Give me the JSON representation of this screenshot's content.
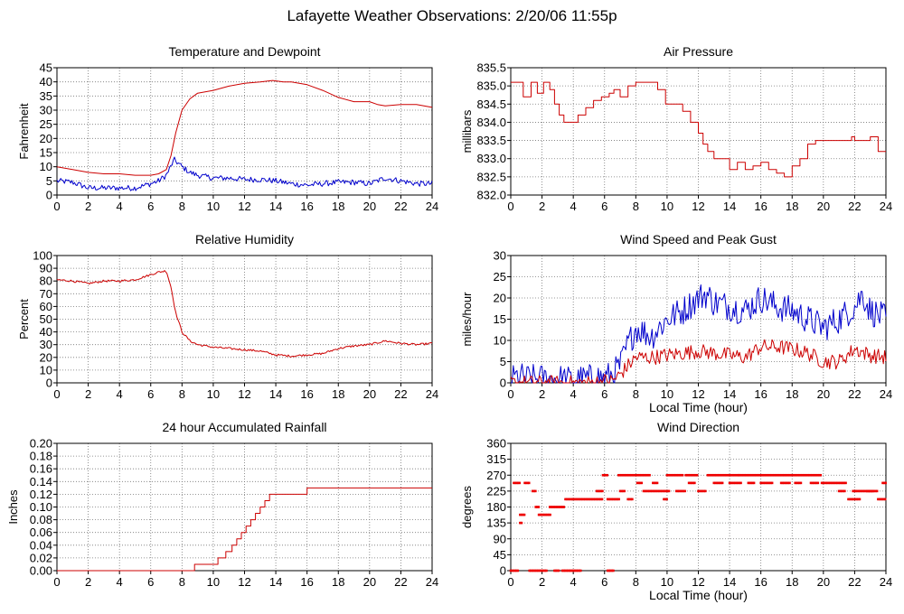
{
  "title": "Lafayette Weather Observations: 2/20/06 11:55p",
  "chart_data": [
    {
      "id": "temp",
      "type": "line",
      "title": "Temperature and Dewpoint",
      "xlabel": "",
      "ylabel": "Fahrenheit",
      "xlim": [
        0,
        24
      ],
      "ylim": [
        0,
        45
      ],
      "xticks": [
        0,
        2,
        4,
        6,
        8,
        10,
        12,
        14,
        16,
        18,
        20,
        22,
        24
      ],
      "yticks": [
        0,
        5,
        10,
        15,
        20,
        25,
        30,
        35,
        40,
        45
      ],
      "grid": true,
      "series": [
        {
          "color": "#cc0000",
          "step": false,
          "noise": 0,
          "x": [
            0,
            1,
            2,
            3,
            4,
            5,
            6,
            6.5,
            7,
            7.3,
            7.6,
            8,
            8.5,
            9,
            10,
            11,
            12,
            13,
            13.8,
            14.5,
            15,
            16,
            17,
            18,
            19,
            20,
            20.5,
            21,
            22,
            23,
            24
          ],
          "y": [
            10,
            9,
            8,
            7.5,
            7.5,
            7,
            7,
            7.5,
            9,
            14,
            22,
            30,
            34,
            36,
            37,
            38.5,
            39.5,
            40,
            40.5,
            40,
            40,
            39,
            37,
            34.5,
            33,
            33,
            32,
            31.5,
            32,
            32,
            31
          ]
        },
        {
          "color": "#0000cc",
          "step": false,
          "noise": 1,
          "x": [
            0,
            1,
            2,
            3,
            4,
            5,
            6,
            6.5,
            7,
            7.5,
            8,
            8.5,
            9,
            10,
            11,
            12,
            13,
            14,
            15,
            16,
            17,
            18,
            19,
            20,
            21,
            22,
            23,
            24
          ],
          "y": [
            5,
            4.5,
            2.5,
            2.5,
            2.5,
            2.5,
            4,
            5,
            7,
            12.5,
            10,
            8,
            7,
            6,
            6,
            5.5,
            5.5,
            5,
            4,
            3.5,
            4,
            4.5,
            4.5,
            4,
            6,
            5,
            4,
            4
          ]
        }
      ]
    },
    {
      "id": "pressure",
      "type": "line",
      "title": "Air Pressure",
      "xlabel": "",
      "ylabel": "millibars",
      "xlim": [
        0,
        24
      ],
      "ylim": [
        832.0,
        835.5
      ],
      "xticks": [
        0,
        2,
        4,
        6,
        8,
        10,
        12,
        14,
        16,
        18,
        20,
        22,
        24
      ],
      "yticks": [
        832.0,
        832.5,
        833.0,
        833.5,
        834.0,
        834.5,
        835.0,
        835.5
      ],
      "ytick_labels": [
        "832.0",
        "832.5",
        "833.0",
        "833.5",
        "834.0",
        "834.5",
        "835.0",
        "835.5"
      ],
      "grid": true,
      "series": [
        {
          "color": "#cc0000",
          "step": true,
          "noise": 0,
          "x": [
            0,
            0.8,
            1.3,
            1.7,
            2.1,
            2.5,
            2.8,
            3.1,
            3.4,
            3.7,
            4.3,
            4.8,
            5.3,
            5.8,
            6.3,
            6.6,
            7,
            7.5,
            8,
            9,
            9.4,
            9.9,
            10.5,
            11,
            11.5,
            12,
            12.3,
            12.6,
            13,
            13.5,
            14,
            14.5,
            15,
            15.5,
            16,
            16.5,
            17,
            17.5,
            18,
            18.5,
            19,
            19.5,
            20,
            21,
            21.8,
            22,
            23,
            23.5,
            24
          ],
          "y": [
            835.1,
            834.7,
            835.1,
            834.8,
            835.1,
            834.9,
            834.5,
            834.2,
            834.0,
            834.0,
            834.2,
            834.4,
            834.6,
            834.7,
            834.8,
            834.9,
            834.7,
            835.0,
            835.1,
            835.1,
            834.9,
            834.5,
            834.5,
            834.3,
            834.0,
            833.7,
            833.4,
            833.2,
            833.0,
            833.0,
            832.7,
            832.9,
            832.7,
            832.8,
            832.9,
            832.7,
            832.6,
            832.5,
            832.8,
            833.0,
            833.4,
            833.5,
            833.5,
            833.5,
            833.6,
            833.5,
            833.6,
            833.2,
            833.2
          ]
        }
      ]
    },
    {
      "id": "humidity",
      "type": "line",
      "title": "Relative Humidity",
      "xlabel": "",
      "ylabel": "Percent",
      "xlim": [
        0,
        24
      ],
      "ylim": [
        0,
        100
      ],
      "xticks": [
        0,
        2,
        4,
        6,
        8,
        10,
        12,
        14,
        16,
        18,
        20,
        22,
        24
      ],
      "yticks": [
        0,
        10,
        20,
        30,
        40,
        50,
        60,
        70,
        80,
        90,
        100
      ],
      "grid": true,
      "series": [
        {
          "color": "#cc0000",
          "step": false,
          "noise": 0.8,
          "x": [
            0,
            1,
            2,
            3,
            4,
            5,
            6,
            6.5,
            7,
            7.3,
            7.6,
            8,
            8.5,
            9,
            10,
            11,
            12,
            13,
            14,
            15,
            16,
            17,
            18,
            19,
            20,
            21,
            22,
            23,
            24
          ],
          "y": [
            81,
            80,
            78,
            80,
            80,
            81,
            85,
            87,
            88,
            75,
            55,
            40,
            33,
            30,
            28,
            27,
            26,
            25,
            22,
            21,
            22,
            23,
            27,
            29,
            30,
            33,
            31,
            30,
            31
          ]
        }
      ]
    },
    {
      "id": "wind",
      "type": "line",
      "title": "Wind Speed and Peak Gust",
      "xlabel": "Local Time (hour)",
      "ylabel": "miles/hour",
      "xlim": [
        0,
        24
      ],
      "ylim": [
        0,
        30
      ],
      "xticks": [
        0,
        2,
        4,
        6,
        8,
        10,
        12,
        14,
        16,
        18,
        20,
        22,
        24
      ],
      "yticks": [
        0,
        5,
        10,
        15,
        20,
        25,
        30
      ],
      "grid": true,
      "series": [
        {
          "color": "#0000cc",
          "step": false,
          "noise": 3.5,
          "x": [
            0,
            0.5,
            1,
            2,
            3,
            4,
            5,
            5.5,
            6,
            6.5,
            7,
            7.5,
            8,
            9,
            10,
            11,
            12,
            12.5,
            13,
            14,
            15,
            16,
            17,
            18,
            19,
            20,
            21,
            22,
            22.5,
            23,
            24
          ],
          "y": [
            0.5,
            1.5,
            1,
            1,
            1,
            0.5,
            1,
            1.5,
            1,
            2,
            4,
            9,
            13,
            11,
            15,
            17,
            20,
            21,
            19,
            18,
            17,
            20,
            18,
            17,
            15,
            13,
            15,
            18,
            21,
            17,
            15
          ]
        },
        {
          "color": "#cc0000",
          "step": false,
          "noise": 1.8,
          "x": [
            0,
            1,
            2,
            3,
            4,
            5,
            6,
            6.5,
            7,
            7.5,
            8,
            9,
            10,
            11,
            12,
            13,
            14,
            15,
            16,
            17,
            18,
            19,
            20,
            21,
            22,
            23,
            24
          ],
          "y": [
            0,
            0,
            0,
            0,
            0,
            0,
            0.5,
            0.5,
            2,
            4,
            6,
            6,
            6.5,
            7,
            7.5,
            7,
            6.5,
            6,
            8.5,
            8.5,
            8,
            7,
            5,
            5,
            8,
            6.5,
            6
          ]
        }
      ]
    },
    {
      "id": "rain",
      "type": "line",
      "title": "24 hour Accumulated Rainfall",
      "xlabel": "",
      "ylabel": "Inches",
      "xlim": [
        0,
        24
      ],
      "ylim": [
        0,
        0.2
      ],
      "xticks": [
        0,
        2,
        4,
        6,
        8,
        10,
        12,
        14,
        16,
        18,
        20,
        22,
        24
      ],
      "yticks": [
        0,
        0.02,
        0.04,
        0.06,
        0.08,
        0.1,
        0.12,
        0.14,
        0.16,
        0.18,
        0.2
      ],
      "ytick_labels": [
        "0.00",
        "0.02",
        "0.04",
        "0.06",
        "0.08",
        "0.10",
        "0.12",
        "0.14",
        "0.16",
        "0.18",
        "0.20"
      ],
      "grid": true,
      "series": [
        {
          "color": "#cc0000",
          "step": true,
          "noise": 0,
          "x": [
            0,
            8.8,
            9.5,
            10.3,
            10.8,
            11.2,
            11.5,
            11.8,
            12.1,
            12.4,
            12.7,
            13.0,
            13.3,
            13.6,
            14.2,
            16.0,
            24
          ],
          "y": [
            0,
            0.01,
            0.01,
            0.02,
            0.03,
            0.04,
            0.05,
            0.06,
            0.07,
            0.08,
            0.09,
            0.1,
            0.11,
            0.12,
            0.12,
            0.13,
            0.13
          ]
        }
      ]
    },
    {
      "id": "direction",
      "type": "scatter",
      "title": "Wind Direction",
      "xlabel": "Local Time (hour)",
      "ylabel": "degrees",
      "xlim": [
        0,
        24
      ],
      "ylim": [
        0,
        360
      ],
      "xticks": [
        0,
        2,
        4,
        6,
        8,
        10,
        12,
        14,
        16,
        18,
        20,
        22,
        24
      ],
      "yticks": [
        0,
        45,
        90,
        135,
        180,
        225,
        270,
        315,
        360
      ],
      "grid": true,
      "series": [
        {
          "color": "#ee0000",
          "step": false,
          "noise": 0,
          "segments": [
            [
              0.0,
              0.5,
              0
            ],
            [
              0.2,
              0.6,
              248
            ],
            [
              0.6,
              0.7,
              135
            ],
            [
              0.6,
              0.9,
              158
            ],
            [
              0.9,
              1.2,
              248
            ],
            [
              1.2,
              2.3,
              0
            ],
            [
              1.4,
              1.6,
              225
            ],
            [
              1.6,
              1.8,
              180
            ],
            [
              1.8,
              2.6,
              158
            ],
            [
              2.5,
              3.4,
              180
            ],
            [
              2.8,
              3.1,
              0
            ],
            [
              3.3,
              4.5,
              0
            ],
            [
              3.5,
              5.9,
              202
            ],
            [
              5.5,
              5.9,
              225
            ],
            [
              5.9,
              6.2,
              270
            ],
            [
              6.2,
              6.6,
              0
            ],
            [
              6.2,
              7.0,
              202
            ],
            [
              6.9,
              8.9,
              270
            ],
            [
              7.0,
              7.3,
              225
            ],
            [
              7.5,
              7.8,
              202
            ],
            [
              8.1,
              8.4,
              248
            ],
            [
              8.5,
              10.2,
              225
            ],
            [
              9.1,
              9.4,
              248
            ],
            [
              9.8,
              10.0,
              202
            ],
            [
              10.0,
              11.0,
              270
            ],
            [
              10.6,
              11.2,
              225
            ],
            [
              11.2,
              12.0,
              270
            ],
            [
              11.4,
              11.8,
              248
            ],
            [
              12.0,
              12.5,
              225
            ],
            [
              12.6,
              14.6,
              270
            ],
            [
              13.0,
              13.6,
              248
            ],
            [
              14.0,
              14.8,
              248
            ],
            [
              14.6,
              19.9,
              270
            ],
            [
              15.2,
              15.6,
              248
            ],
            [
              16.0,
              16.8,
              248
            ],
            [
              17.3,
              17.9,
              248
            ],
            [
              18.2,
              18.6,
              248
            ],
            [
              19.2,
              19.7,
              248
            ],
            [
              19.9,
              21.5,
              248
            ],
            [
              21.0,
              21.4,
              225
            ],
            [
              21.6,
              22.4,
              202
            ],
            [
              21.9,
              23.5,
              225
            ],
            [
              22.8,
              23.2,
              225
            ],
            [
              23.5,
              24.0,
              202
            ],
            [
              23.8,
              24.0,
              248
            ]
          ]
        }
      ]
    }
  ]
}
